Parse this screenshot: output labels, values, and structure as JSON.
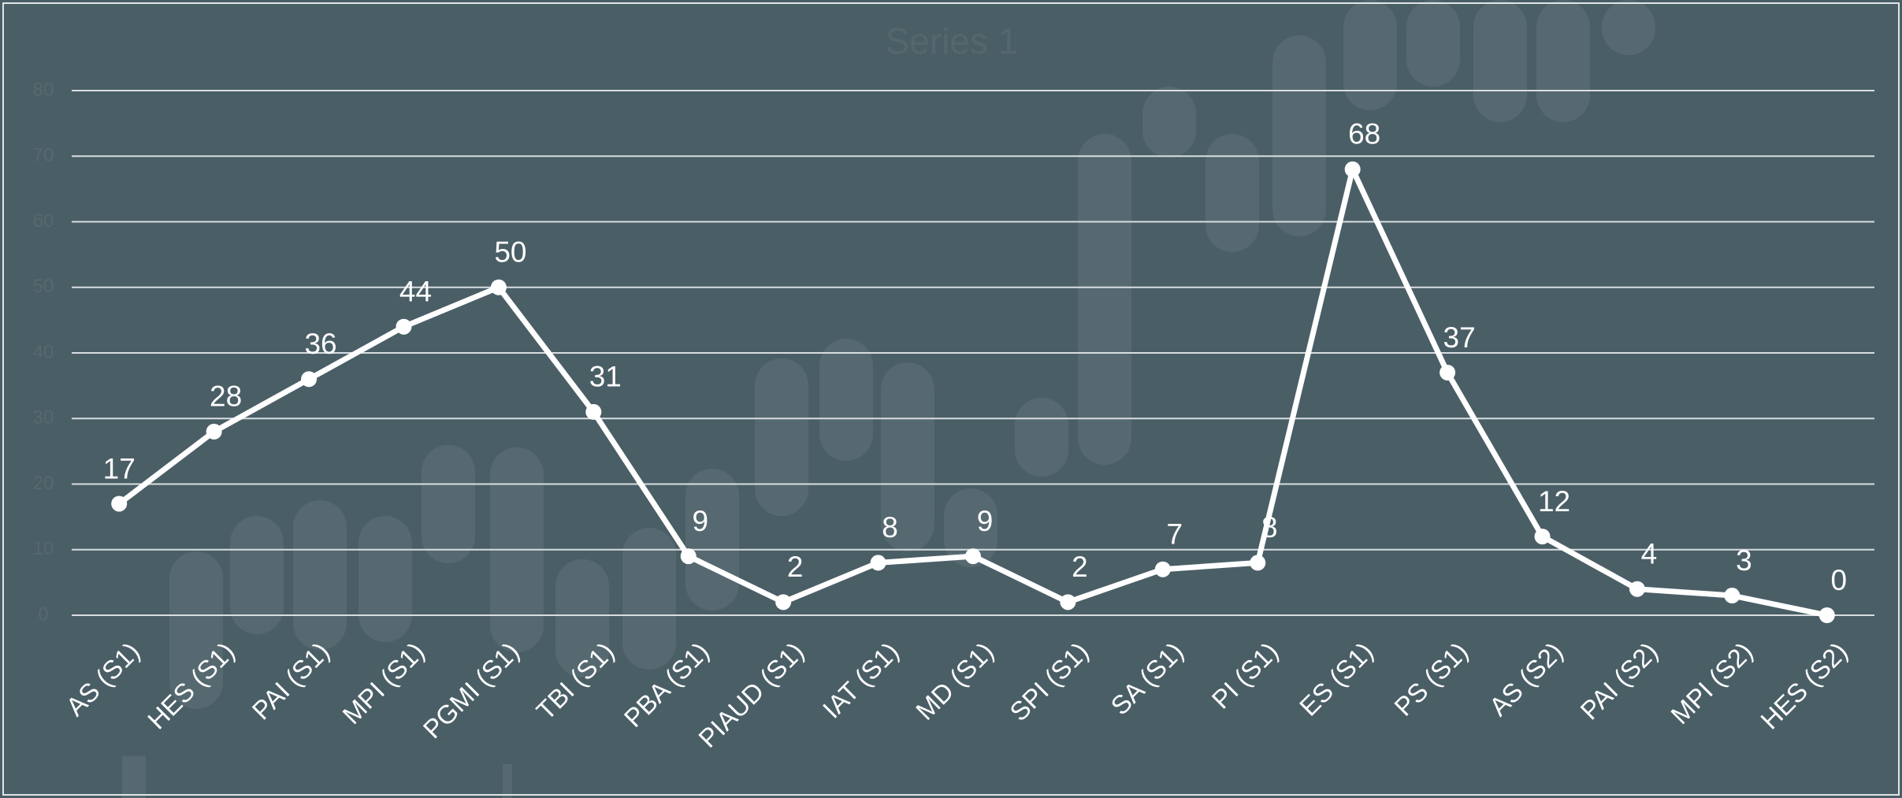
{
  "chart_data": {
    "type": "line",
    "title": "Series 1",
    "categories": [
      "AS (S1)",
      "HES (S1)",
      "PAI (S1)",
      "MPI (S1)",
      "PGMI (S1)",
      "TBI (S1)",
      "PBA (S1)",
      "PIAUD (S1)",
      "IAT (S1)",
      "MD (S1)",
      "SPI (S1)",
      "SA (S1)",
      "PI (S1)",
      "ES (S1)",
      "PS (S1)",
      "AS (S2)",
      "PAI (S2)",
      "MPI (S2)",
      "HES (S2)"
    ],
    "values": [
      17,
      28,
      36,
      44,
      50,
      31,
      9,
      2,
      8,
      9,
      2,
      7,
      8,
      68,
      37,
      12,
      4,
      3,
      0
    ],
    "color": "#ffffff",
    "ylim": [
      0,
      80
    ],
    "yticks": [
      0,
      10,
      20,
      30,
      40,
      50,
      60,
      70,
      80
    ],
    "grid": true
  }
}
